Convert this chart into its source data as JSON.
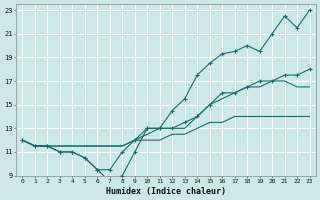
{
  "xlabel": "Humidex (Indice chaleur)",
  "bg_color": "#cde8e8",
  "grid_color": "#b0d0d0",
  "line_color": "#1a6b6b",
  "xlim": [
    -0.5,
    23.5
  ],
  "ylim": [
    9,
    23.5
  ],
  "xticks": [
    0,
    1,
    2,
    3,
    4,
    5,
    6,
    7,
    8,
    9,
    10,
    11,
    12,
    13,
    14,
    15,
    16,
    17,
    18,
    19,
    20,
    21,
    22,
    23
  ],
  "yticks": [
    9,
    11,
    13,
    15,
    17,
    19,
    21,
    23
  ],
  "series": [
    {
      "x": [
        0,
        1,
        2,
        3,
        4,
        5,
        6,
        7,
        8,
        9,
        10,
        11,
        12,
        13,
        14,
        15,
        16,
        17,
        18,
        19,
        20,
        21,
        22,
        23
      ],
      "y": [
        12,
        11.5,
        11.5,
        11,
        11,
        10.5,
        9.5,
        9.5,
        11,
        12,
        13,
        13,
        13,
        13.5,
        14,
        15,
        16,
        16,
        16.5,
        17,
        17,
        17.5,
        17.5,
        18
      ],
      "marker": true
    },
    {
      "x": [
        0,
        1,
        2,
        3,
        4,
        5,
        6,
        7,
        8,
        9,
        10,
        11,
        12,
        13,
        14,
        15,
        16,
        17,
        18,
        19,
        20,
        21,
        22,
        23
      ],
      "y": [
        12,
        11.5,
        11.5,
        11.5,
        11.5,
        11.5,
        11.5,
        11.5,
        11.5,
        12,
        12,
        12,
        12.5,
        12.5,
        13,
        13.5,
        13.5,
        14,
        14,
        14,
        14,
        14,
        14,
        14
      ],
      "marker": false
    },
    {
      "x": [
        0,
        1,
        2,
        3,
        4,
        5,
        6,
        7,
        8,
        9,
        10,
        11,
        12,
        13,
        14,
        15,
        16,
        17,
        18,
        19,
        20,
        21,
        22,
        23
      ],
      "y": [
        12,
        11.5,
        11.5,
        11.5,
        11.5,
        11.5,
        11.5,
        11.5,
        11.5,
        12,
        12.5,
        13,
        13,
        13,
        14,
        15,
        15.5,
        16,
        16.5,
        16.5,
        17,
        17,
        16.5,
        16.5
      ],
      "marker": false
    },
    {
      "x": [
        0,
        1,
        2,
        3,
        4,
        5,
        6,
        7,
        8,
        9,
        10,
        11,
        12,
        13,
        14,
        15,
        16,
        17,
        18,
        19,
        20,
        21,
        22,
        23
      ],
      "y": [
        12,
        11.5,
        11.5,
        11,
        11,
        10.5,
        9.5,
        8.5,
        9,
        11,
        13,
        13,
        14.5,
        15.5,
        17.5,
        18.5,
        19.3,
        19.5,
        20,
        19.5,
        21,
        22.5,
        21.5,
        23
      ],
      "marker": true
    }
  ]
}
